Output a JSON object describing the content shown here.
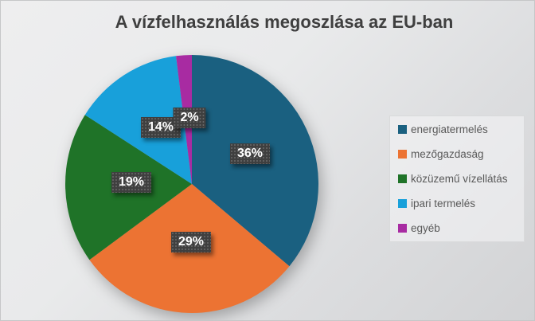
{
  "title": "A vízfelhasználás megoszlása az EU-ban",
  "chart_data": {
    "type": "pie",
    "title": "A vízfelhasználás megoszlása az EU-ban",
    "start_angle_deg": 0,
    "direction": "clockwise",
    "legend_position": "right",
    "slices": [
      {
        "label": "energiatermelés",
        "value": 36,
        "display": "36%",
        "color": "#1A6080"
      },
      {
        "label": "mezőgazdaság",
        "value": 29,
        "display": "29%",
        "color": "#EC7333"
      },
      {
        "label": "közüzemű vízellátás",
        "value": 19,
        "display": "19%",
        "color": "#1F7328"
      },
      {
        "label": "ipari termelés",
        "value": 14,
        "display": "14%",
        "color": "#18A0DA"
      },
      {
        "label": "egyéb",
        "value": 2,
        "display": "2%",
        "color": "#A82BA2"
      }
    ]
  },
  "colors": {
    "background_top_left": "#EEEEEF",
    "background_bottom_right": "#D2D3D5",
    "title_text": "#3F3F3F",
    "legend_text": "#595959",
    "label_box_background": "#3F3F3F",
    "label_text": "#FFFFFF"
  }
}
